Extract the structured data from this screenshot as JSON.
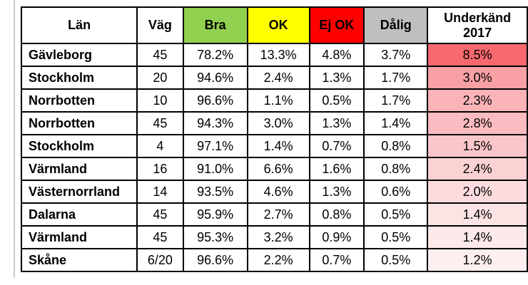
{
  "page": {
    "background": "#ffffff",
    "edge_line_color": "#cccccc"
  },
  "table": {
    "border_color": "#000000",
    "text_color": "#000000",
    "columns": [
      {
        "key": "lan",
        "label": "Län",
        "bg": "#ffffff",
        "text": "#000000"
      },
      {
        "key": "vag",
        "label": "Väg",
        "bg": "#ffffff",
        "text": "#000000"
      },
      {
        "key": "bra",
        "label": "Bra",
        "bg": "#92D050",
        "text": "#000000"
      },
      {
        "key": "ok",
        "label": "OK",
        "bg": "#FFFF00",
        "text": "#000000"
      },
      {
        "key": "ej_ok",
        "label": "Ej OK",
        "bg": "#FF0000",
        "text": "#000000"
      },
      {
        "key": "dalig",
        "label": "Dålig",
        "bg": "#BFBFBF",
        "text": "#000000"
      },
      {
        "key": "underkand",
        "label": "Underkänd 2017",
        "bg": "#ffffff",
        "text": "#000000"
      }
    ],
    "rows": [
      {
        "lan": "Gävleborg",
        "vag": "45",
        "bra": "78.2%",
        "ok": "13.3%",
        "ej_ok": "4.8%",
        "dalig": "3.7%",
        "underkand": "8.5%",
        "underkand_bg": "#F7696E"
      },
      {
        "lan": "Stockholm",
        "vag": "20",
        "bra": "94.6%",
        "ok": "2.4%",
        "ej_ok": "1.3%",
        "dalig": "1.7%",
        "underkand": "3.0%",
        "underkand_bg": "#F9A0A5"
      },
      {
        "lan": "Norrbotten",
        "vag": "10",
        "bra": "96.6%",
        "ok": "1.1%",
        "ej_ok": "0.5%",
        "dalig": "1.7%",
        "underkand": "2.3%",
        "underkand_bg": "#FAB4B8"
      },
      {
        "lan": "Norrbotten",
        "vag": "45",
        "bra": "94.3%",
        "ok": "3.0%",
        "ej_ok": "1.3%",
        "dalig": "1.4%",
        "underkand": "2.8%",
        "underkand_bg": "#FABCC0"
      },
      {
        "lan": "Stockholm",
        "vag": "4",
        "bra": "97.1%",
        "ok": "1.4%",
        "ej_ok": "0.7%",
        "dalig": "0.8%",
        "underkand": "1.5%",
        "underkand_bg": "#FAC6C9"
      },
      {
        "lan": "Värmland",
        "vag": "16",
        "bra": "91.0%",
        "ok": "6.6%",
        "ej_ok": "1.6%",
        "dalig": "0.8%",
        "underkand": "2.4%",
        "underkand_bg": "#FBD2D4"
      },
      {
        "lan": "Västernorrland",
        "vag": "14",
        "bra": "93.5%",
        "ok": "4.6%",
        "ej_ok": "1.3%",
        "dalig": "0.6%",
        "underkand": "2.0%",
        "underkand_bg": "#FBDBDD"
      },
      {
        "lan": "Dalarna",
        "vag": "45",
        "bra": "95.9%",
        "ok": "2.7%",
        "ej_ok": "0.8%",
        "dalig": "0.5%",
        "underkand": "1.4%",
        "underkand_bg": "#FCE3E4"
      },
      {
        "lan": "Värmland",
        "vag": "45",
        "bra": "95.3%",
        "ok": "3.2%",
        "ej_ok": "0.9%",
        "dalig": "0.5%",
        "underkand": "1.4%",
        "underkand_bg": "#FCE9EA"
      },
      {
        "lan": "Skåne",
        "vag": "6/20",
        "bra": "96.6%",
        "ok": "2.2%",
        "ej_ok": "0.7%",
        "dalig": "0.5%",
        "underkand": "1.2%",
        "underkand_bg": "#FDEFF0"
      }
    ]
  }
}
